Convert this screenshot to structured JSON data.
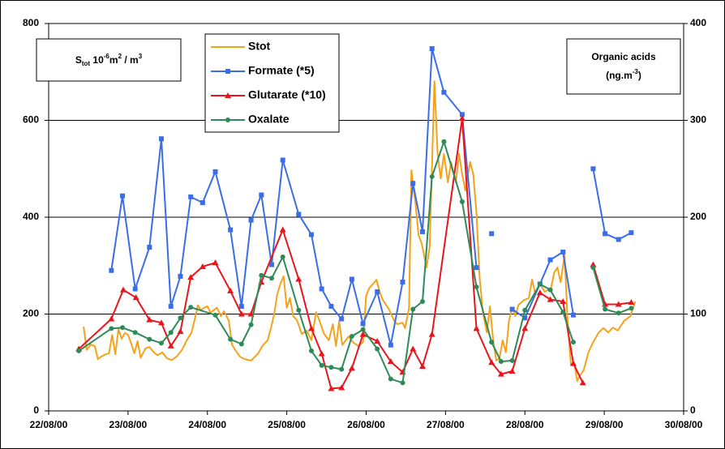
{
  "chart_data": {
    "type": "line",
    "ylabel": [
      "S",
      "tot",
      " 10",
      "-6",
      "m",
      "2",
      " / m",
      "3"
    ],
    "y2label": [
      "Organic acids",
      "(ng.m",
      "-3",
      ")"
    ],
    "xlim": [
      22,
      30
    ],
    "xticks": [
      {
        "value": 22,
        "label": "22/08/00"
      },
      {
        "value": 23,
        "label": "23/08/00"
      },
      {
        "value": 24,
        "label": "24/08/00"
      },
      {
        "value": 25,
        "label": "25/08/00"
      },
      {
        "value": 26,
        "label": "26/08/00"
      },
      {
        "value": 27,
        "label": "27/08/00"
      },
      {
        "value": 28,
        "label": "28/08/00"
      },
      {
        "value": 29,
        "label": "29/08/00"
      },
      {
        "value": 30,
        "label": "30/08/00"
      }
    ],
    "ylim": [
      0,
      800
    ],
    "yticks": [
      0,
      200,
      400,
      600,
      800
    ],
    "y2lim": [
      0,
      400
    ],
    "y2ticks": [
      0,
      100,
      200,
      300,
      400
    ],
    "grid": true,
    "series": [
      {
        "name": "Stot",
        "color": "#f5a21b",
        "marker": "none",
        "x": [
          22.44,
          22.48,
          22.53,
          22.58,
          22.62,
          22.66,
          22.72,
          22.76,
          22.8,
          22.84,
          22.88,
          22.92,
          22.96,
          23.0,
          23.04,
          23.08,
          23.12,
          23.16,
          23.22,
          23.27,
          23.32,
          23.37,
          23.43,
          23.49,
          23.55,
          23.61,
          23.68,
          23.74,
          23.8,
          23.84,
          23.88,
          23.92,
          23.96,
          24.0,
          24.04,
          24.08,
          24.12,
          24.17,
          24.21,
          24.27,
          24.31,
          24.35,
          24.41,
          24.47,
          24.55,
          24.64,
          24.7,
          24.76,
          24.8,
          24.84,
          24.88,
          24.92,
          24.96,
          25.0,
          25.04,
          25.08,
          25.13,
          25.19,
          25.25,
          25.31,
          25.37,
          25.41,
          25.47,
          25.53,
          25.58,
          25.62,
          25.66,
          25.7,
          25.78,
          25.84,
          25.9,
          25.96,
          26.0,
          26.04,
          26.09,
          26.13,
          26.17,
          26.21,
          26.29,
          26.35,
          26.39,
          26.46,
          26.49,
          26.54,
          26.57,
          26.62,
          26.66,
          26.7,
          26.76,
          26.8,
          26.84,
          26.86,
          26.9,
          26.94,
          26.98,
          27.03,
          27.07,
          27.13,
          27.17,
          27.21,
          27.25,
          27.31,
          27.35,
          27.39,
          27.43,
          27.47,
          27.52,
          27.56,
          27.6,
          27.64,
          27.68,
          27.72,
          27.76,
          27.8,
          27.84,
          27.88,
          27.92,
          27.99,
          28.05,
          28.09,
          28.13,
          28.19,
          28.25,
          28.33,
          28.37,
          28.41,
          28.45,
          28.5,
          28.54,
          28.58,
          28.62,
          28.66,
          28.7,
          28.74,
          28.8,
          28.86,
          28.93,
          28.99,
          29.05,
          29.11,
          29.17,
          29.25,
          29.33,
          29.39
        ],
        "values": [
          174,
          126,
          137,
          134,
          107,
          112,
          117,
          119,
          157,
          117,
          169,
          149,
          161,
          157,
          139,
          119,
          144,
          110,
          129,
          132,
          122,
          115,
          121,
          109,
          105,
          112,
          126,
          146,
          162,
          189,
          218,
          208,
          213,
          216,
          203,
          208,
          213,
          196,
          206,
          186,
          137,
          126,
          112,
          107,
          104,
          119,
          136,
          146,
          171,
          199,
          241,
          263,
          278,
          213,
          233,
          196,
          187,
          159,
          166,
          146,
          204,
          187,
          159,
          146,
          179,
          134,
          186,
          136,
          154,
          141,
          134,
          142,
          238,
          254,
          263,
          271,
          246,
          229,
          209,
          187,
          179,
          182,
          171,
          213,
          497,
          430,
          363,
          346,
          296,
          338,
          564,
          681,
          531,
          480,
          531,
          472,
          514,
          472,
          531,
          489,
          455,
          514,
          489,
          410,
          274,
          204,
          162,
          216,
          146,
          104,
          109,
          146,
          121,
          187,
          213,
          196,
          219,
          229,
          233,
          271,
          243,
          263,
          246,
          254,
          286,
          296,
          266,
          321,
          179,
          95,
          100,
          62,
          75,
          84,
          121,
          142,
          162,
          171,
          162,
          172,
          166,
          186,
          196,
          226
        ]
      },
      {
        "name": "Formate (*5)",
        "color": "#3a6ee8",
        "marker": "square",
        "axis": "y2",
        "x": [
          22.79,
          22.93,
          23.09,
          23.27,
          23.42,
          23.54,
          23.66,
          23.79,
          23.94,
          24.1,
          24.29,
          24.43,
          24.55,
          24.68,
          24.81,
          24.95,
          25.15,
          25.31,
          25.44,
          25.56,
          25.69,
          25.82,
          25.96,
          26.14,
          26.31,
          26.46,
          26.59,
          26.71,
          26.83,
          26.98,
          27.21,
          27.39,
          null,
          27.58,
          null,
          27.84,
          28.0,
          28.19,
          28.32,
          28.48,
          28.61,
          null,
          28.86,
          29.01,
          29.18,
          29.34
        ],
        "values": [
          145,
          222,
          126,
          169,
          281,
          108,
          139,
          221,
          215,
          247,
          187,
          108,
          197,
          223,
          151,
          259,
          203,
          182,
          126,
          108,
          95,
          136,
          90,
          123,
          68,
          133,
          235,
          185,
          374,
          329,
          306,
          148,
          null,
          183,
          null,
          105,
          96,
          131,
          156,
          164,
          99,
          null,
          250,
          183,
          177,
          184
        ]
      },
      {
        "name": "Glutarate (*10)",
        "color": "#e8161c",
        "marker": "triangle",
        "axis": "y2",
        "x": [
          22.38,
          22.79,
          22.94,
          23.1,
          23.27,
          23.42,
          23.54,
          23.66,
          23.79,
          23.94,
          24.1,
          24.29,
          24.43,
          24.55,
          24.68,
          24.95,
          25.15,
          25.31,
          25.44,
          25.56,
          25.69,
          25.82,
          25.96,
          26.14,
          26.31,
          26.46,
          26.59,
          26.71,
          26.83,
          27.21,
          27.39,
          27.58,
          27.7,
          27.84,
          28.0,
          28.19,
          28.32,
          28.48,
          28.61,
          28.73,
          null,
          28.86,
          29.01,
          29.18,
          29.34
        ],
        "values": [
          64,
          95,
          125,
          117,
          94,
          91,
          67,
          82,
          138,
          149,
          153,
          124,
          100,
          100,
          133,
          187,
          136,
          85,
          59,
          23,
          24,
          44,
          79,
          72,
          51,
          40,
          64,
          46,
          79,
          302,
          85,
          50,
          38,
          41,
          85,
          122,
          115,
          113,
          49,
          29,
          null,
          151,
          110,
          110,
          112
        ]
      },
      {
        "name": "Oxalate",
        "color": "#2e8b57",
        "marker": "circle",
        "axis": "y2",
        "x": [
          22.38,
          22.79,
          22.93,
          23.09,
          23.27,
          23.42,
          23.54,
          23.66,
          23.79,
          24.1,
          24.29,
          24.43,
          24.55,
          24.68,
          24.81,
          24.95,
          25.15,
          25.31,
          25.44,
          25.56,
          25.69,
          25.82,
          25.96,
          26.14,
          26.31,
          26.46,
          26.59,
          26.71,
          26.83,
          26.98,
          27.21,
          27.39,
          27.58,
          27.7,
          27.84,
          28.0,
          28.19,
          28.32,
          28.48,
          28.61,
          null,
          28.86,
          29.01,
          29.18,
          29.34
        ],
        "values": [
          62,
          85,
          86,
          81,
          74,
          70,
          81,
          96,
          107,
          99,
          74,
          69,
          89,
          140,
          137,
          159,
          104,
          62,
          47,
          45,
          43,
          77,
          84,
          64,
          33,
          29,
          105,
          113,
          242,
          278,
          216,
          128,
          71,
          51,
          52,
          104,
          131,
          125,
          102,
          71,
          null,
          148,
          105,
          101,
          106
        ]
      }
    ]
  }
}
